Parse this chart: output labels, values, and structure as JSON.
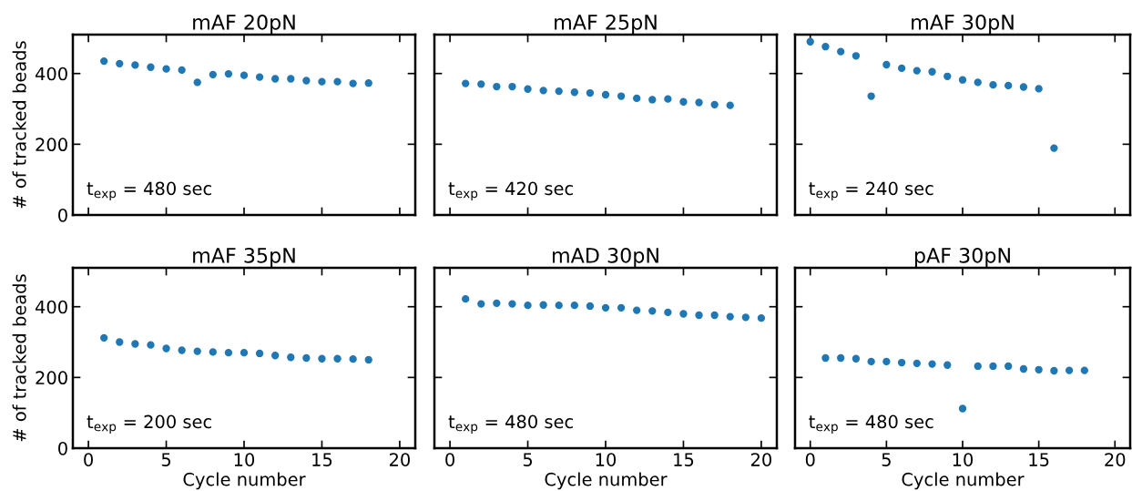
{
  "chart_data": [
    {
      "type": "scatter",
      "title": "mAF 20pN",
      "ylabel": "# of tracked beads",
      "annotations": [
        "t$_{exp}$ = 480 sec"
      ],
      "x": [
        1,
        2,
        3,
        4,
        5,
        6,
        7,
        8,
        9,
        10,
        11,
        12,
        13,
        14,
        15,
        16,
        17,
        18
      ],
      "series": [
        {
          "color": "#1f77b4",
          "values": [
            435,
            428,
            424,
            418,
            413,
            410,
            375,
            397,
            399,
            395,
            390,
            385,
            385,
            380,
            377,
            377,
            372,
            373
          ]
        }
      ],
      "xlim": [
        -1,
        21
      ],
      "xticks": [
        0,
        5,
        10,
        15,
        20
      ],
      "ylim": [
        0,
        510
      ],
      "yticks": [
        0,
        200,
        400
      ],
      "tick_labels": "y",
      "marker": "circle"
    },
    {
      "type": "scatter",
      "title": "mAF 25pN",
      "annotations": [
        "t$_{exp}$ = 420 sec"
      ],
      "x": [
        1,
        2,
        3,
        4,
        5,
        6,
        7,
        8,
        9,
        10,
        11,
        12,
        13,
        14,
        15,
        16,
        17,
        18
      ],
      "series": [
        {
          "color": "#1f77b4",
          "values": [
            372,
            370,
            363,
            363,
            356,
            352,
            350,
            347,
            345,
            340,
            336,
            330,
            326,
            328,
            320,
            318,
            312,
            310
          ]
        }
      ],
      "xlim": [
        -1,
        21
      ],
      "xticks": [
        0,
        5,
        10,
        15,
        20
      ],
      "ylim": [
        0,
        510
      ],
      "yticks": [
        0,
        200,
        400
      ],
      "tick_labels": false,
      "marker": "circle"
    },
    {
      "type": "scatter",
      "title": "mAF 30pN",
      "annotations": [
        "t$_{exp}$ = 240 sec"
      ],
      "x": [
        0,
        1,
        2,
        3,
        4,
        5,
        6,
        7,
        8,
        9,
        10,
        11,
        12,
        13,
        14,
        15,
        16
      ],
      "series": [
        {
          "color": "#1f77b4",
          "values": [
            490,
            476,
            462,
            450,
            336,
            425,
            415,
            408,
            405,
            392,
            382,
            375,
            368,
            366,
            362,
            357,
            189
          ]
        }
      ],
      "xlim": [
        -1,
        21
      ],
      "xticks": [
        0,
        5,
        10,
        15,
        20
      ],
      "ylim": [
        0,
        510
      ],
      "yticks": [
        0,
        200,
        400
      ],
      "tick_labels": false,
      "marker": "circle"
    },
    {
      "type": "scatter",
      "title": "mAF 35pN",
      "ylabel": "# of tracked beads",
      "xlabel": "Cycle number",
      "annotations": [
        "t$_{exp}$ = 200 sec"
      ],
      "x": [
        1,
        2,
        3,
        4,
        5,
        6,
        7,
        8,
        9,
        10,
        11,
        12,
        13,
        14,
        15,
        16,
        17,
        18
      ],
      "series": [
        {
          "color": "#1f77b4",
          "values": [
            312,
            300,
            295,
            292,
            282,
            277,
            274,
            272,
            270,
            270,
            268,
            262,
            257,
            255,
            253,
            253,
            252,
            250
          ]
        }
      ],
      "xlim": [
        -1,
        21
      ],
      "xticks": [
        0,
        5,
        10,
        15,
        20
      ],
      "ylim": [
        0,
        510
      ],
      "yticks": [
        0,
        200,
        400
      ],
      "marker": "circle"
    },
    {
      "type": "scatter",
      "title": "mAD 30pN",
      "xlabel": "Cycle number",
      "annotations": [
        "t$_{exp}$ = 480 sec"
      ],
      "x": [
        1,
        2,
        3,
        4,
        5,
        6,
        7,
        8,
        9,
        10,
        11,
        12,
        13,
        14,
        15,
        16,
        17,
        18,
        19,
        20
      ],
      "series": [
        {
          "color": "#1f77b4",
          "values": [
            422,
            408,
            410,
            408,
            404,
            405,
            404,
            404,
            402,
            397,
            397,
            390,
            388,
            384,
            380,
            376,
            376,
            372,
            370,
            368
          ]
        }
      ],
      "xlim": [
        -1,
        21
      ],
      "xticks": [
        0,
        5,
        10,
        15,
        20
      ],
      "ylim": [
        0,
        510
      ],
      "yticks": [
        0,
        200,
        400
      ],
      "tick_labels": "x",
      "marker": "circle"
    },
    {
      "type": "scatter",
      "title": "pAF 30pN",
      "xlabel": "Cycle number",
      "annotations": [
        "t$_{exp}$ = 480 sec"
      ],
      "x": [
        1,
        2,
        3,
        4,
        5,
        6,
        7,
        8,
        9,
        10,
        11,
        12,
        13,
        14,
        15,
        16,
        17,
        18
      ],
      "series": [
        {
          "color": "#1f77b4",
          "values": [
            255,
            255,
            253,
            245,
            245,
            242,
            240,
            238,
            235,
            112,
            232,
            232,
            232,
            224,
            222,
            219,
            220,
            220
          ]
        }
      ],
      "xlim": [
        -1,
        21
      ],
      "xticks": [
        0,
        5,
        10,
        15,
        20
      ],
      "ylim": [
        0,
        510
      ],
      "yticks": [
        0,
        200,
        400
      ],
      "tick_labels": "x",
      "marker": "circle"
    }
  ]
}
